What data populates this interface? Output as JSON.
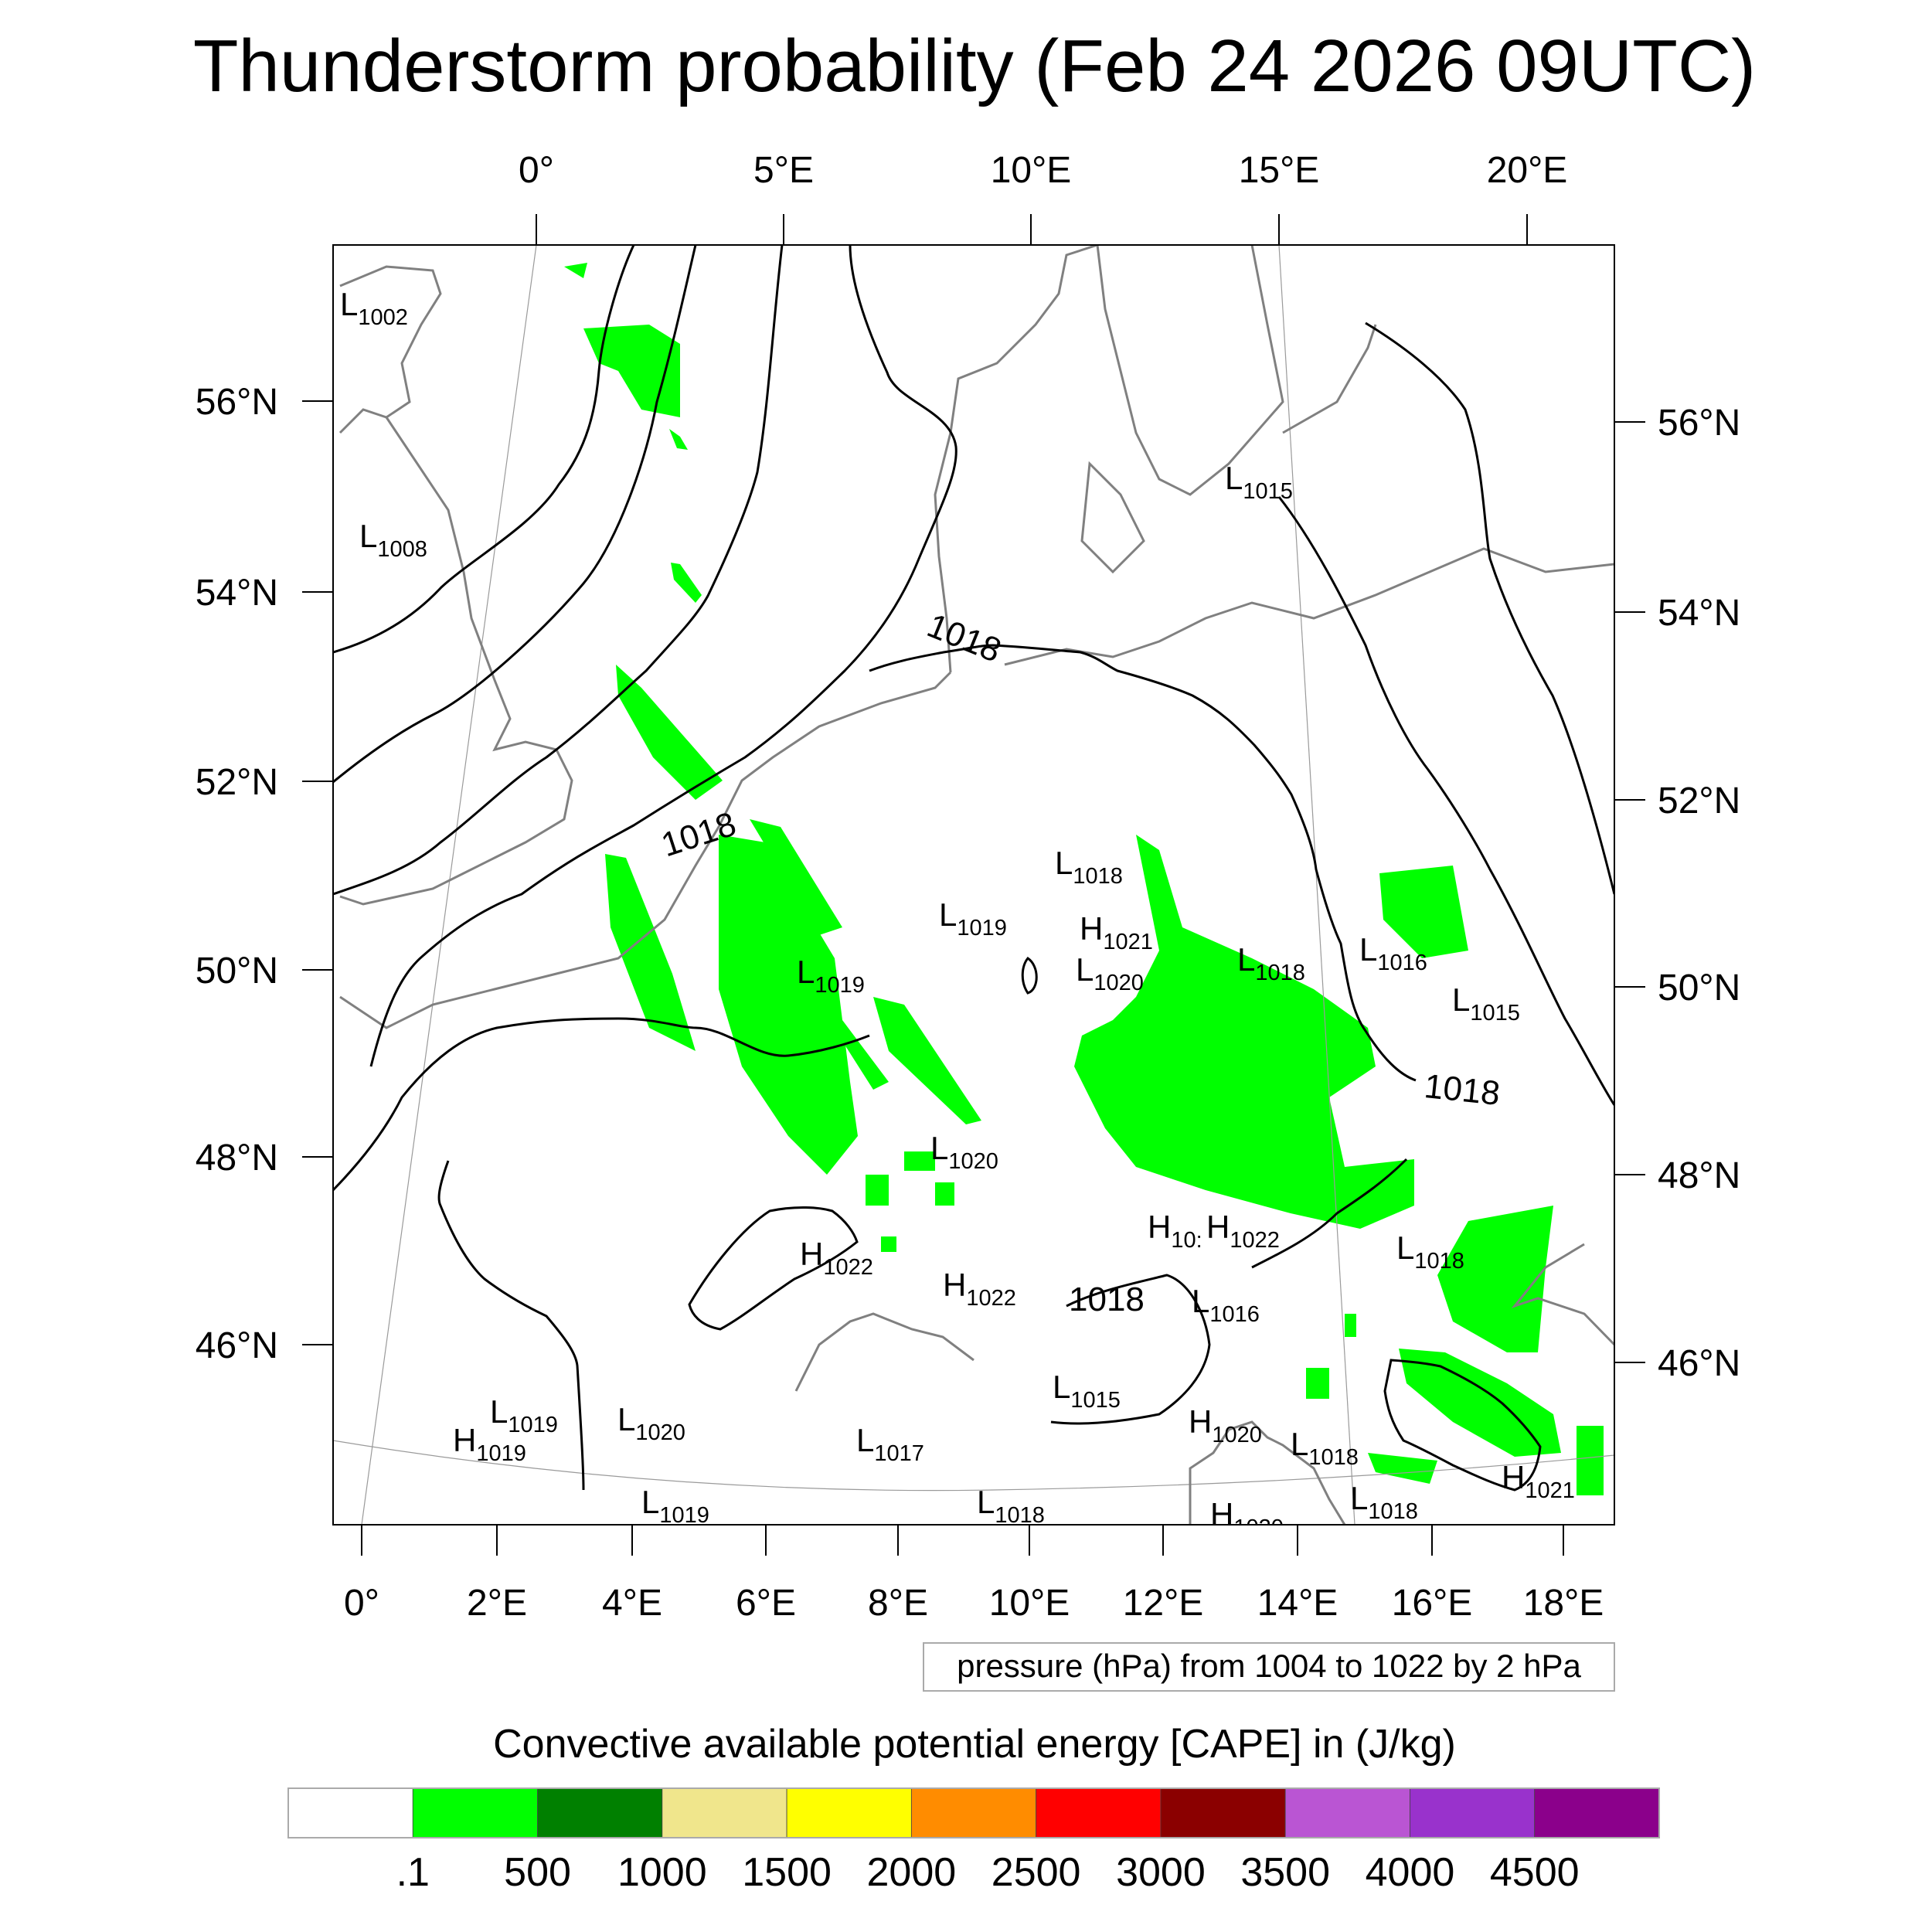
{
  "title": "Thunderstorm probability (Feb 24 2026 09UTC)",
  "map": {
    "top_lon_labels": [
      "0°",
      "5°E",
      "10°E",
      "15°E",
      "20°E"
    ],
    "bottom_lon_labels": [
      "0°",
      "2°E",
      "4°E",
      "6°E",
      "8°E",
      "10°E",
      "12°E",
      "14°E",
      "16°E",
      "18°E"
    ],
    "left_lat_labels": [
      "56°N",
      "54°N",
      "52°N",
      "50°N",
      "48°N",
      "46°N"
    ],
    "right_lat_labels": [
      "56°N",
      "54°N",
      "52°N",
      "50°N",
      "48°N",
      "46°N"
    ],
    "pressure_centers": [
      {
        "type": "L",
        "value": "1002"
      },
      {
        "type": "L",
        "value": "1008"
      },
      {
        "type": "L",
        "value": "1015"
      },
      {
        "type": "L",
        "value": "1018"
      },
      {
        "type": "L",
        "value": "1019"
      },
      {
        "type": "H",
        "value": "1021"
      },
      {
        "type": "L",
        "value": "1020"
      },
      {
        "type": "L",
        "value": "1018"
      },
      {
        "type": "L",
        "value": "1016"
      },
      {
        "type": "L",
        "value": "1015"
      },
      {
        "type": "L",
        "value": "1019"
      },
      {
        "type": "L",
        "value": "1020"
      },
      {
        "type": "H",
        "value": "1022"
      },
      {
        "type": "H",
        "value": "1022"
      },
      {
        "type": "H",
        "value": "10:"
      },
      {
        "type": "H",
        "value": "1022"
      },
      {
        "type": "L",
        "value": "1018"
      },
      {
        "type": "L",
        "value": "1016"
      },
      {
        "type": "L",
        "value": "1015"
      },
      {
        "type": "H",
        "value": "1020"
      },
      {
        "type": "L",
        "value": "1018"
      },
      {
        "type": "H",
        "value": "1021"
      },
      {
        "type": "L",
        "value": "1018"
      },
      {
        "type": "L",
        "value": "1017"
      },
      {
        "type": "L",
        "value": "1018"
      },
      {
        "type": "L",
        "value": "1019"
      },
      {
        "type": "L",
        "value": "1020"
      },
      {
        "type": "L",
        "value": "1019"
      },
      {
        "type": "H",
        "value": "1019"
      },
      {
        "type": "H",
        "value": "1020"
      }
    ],
    "contour_labels": [
      "1018",
      "1018",
      "1018",
      "1018"
    ]
  },
  "contour_info": "pressure (hPa) from 1004 to 1022 by 2 hPa",
  "colorbar": {
    "title": "Convective available potential energy [CAPE] in (J/kg)",
    "colors": [
      "#ffffff",
      "#00ff00",
      "#008000",
      "#f0e68c",
      "#ffff00",
      "#ff8c00",
      "#ff0000",
      "#8b0000",
      "#ba55d3",
      "#9932cc",
      "#8b008b"
    ],
    "labels": [
      ".1",
      "500",
      "1000",
      "1500",
      "2000",
      "2500",
      "3000",
      "3500",
      "4000",
      "4500"
    ]
  }
}
